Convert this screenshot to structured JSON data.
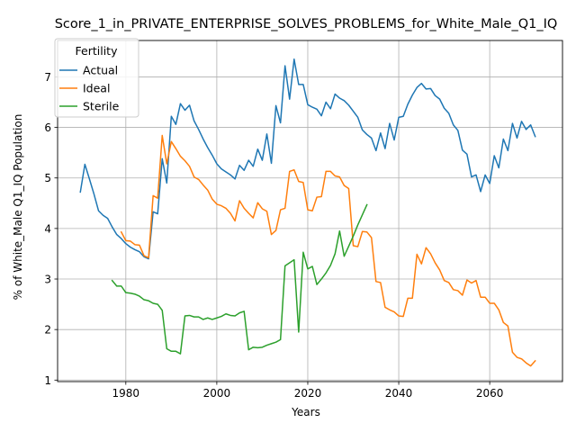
{
  "chart_data": {
    "type": "line",
    "title": "Score_1_in_PRIVATE_ENTERPRISE_SOLVES_PROBLEMS_for_White_Male_Q1_IQ",
    "xlabel": "Years",
    "ylabel": "% of White_Male Q1_IQ Population",
    "xlim": [
      1965,
      2076
    ],
    "ylim": [
      0.97,
      7.72
    ],
    "x_ticks": [
      "1980",
      "2000",
      "2020",
      "2040",
      "2060"
    ],
    "y_ticks": [
      "1",
      "2",
      "3",
      "4",
      "5",
      "6",
      "7"
    ],
    "grid": true,
    "legend": {
      "title": "Fertility",
      "placement": "top-left"
    },
    "series": [
      {
        "name": "Actual",
        "color": "#1f77b4",
        "x": [
          1970,
          1971,
          1972,
          1973,
          1974,
          1975,
          1976,
          1977,
          1978,
          1979,
          1980,
          1981,
          1982,
          1983,
          1984,
          1985,
          1986,
          1987,
          1988,
          1989,
          1990,
          1991,
          1992,
          1993,
          1994,
          1995,
          1996,
          1997,
          1998,
          1999,
          2000,
          2001,
          2002,
          2003,
          2004,
          2005,
          2006,
          2007,
          2008,
          2009,
          2010,
          2011,
          2012,
          2013,
          2014,
          2015,
          2016,
          2017,
          2018,
          2019,
          2020,
          2021,
          2022,
          2023,
          2024,
          2025,
          2026,
          2027,
          2028,
          2029,
          2030,
          2031,
          2032,
          2033,
          2034,
          2035,
          2036,
          2037,
          2038,
          2039,
          2040,
          2041,
          2042,
          2043,
          2044,
          2045,
          2046,
          2047,
          2048,
          2049,
          2050,
          2051,
          2052,
          2053,
          2054,
          2055,
          2056,
          2057,
          2058,
          2059,
          2060,
          2061,
          2062,
          2063,
          2064,
          2065,
          2066,
          2067,
          2068,
          2069,
          2070
        ],
        "values": [
          4.72,
          5.27,
          4.98,
          4.68,
          4.35,
          4.26,
          4.2,
          4.03,
          3.88,
          3.8,
          3.7,
          3.63,
          3.58,
          3.54,
          3.44,
          3.4,
          4.33,
          4.29,
          5.38,
          4.9,
          6.22,
          6.06,
          6.47,
          6.34,
          6.44,
          6.13,
          5.96,
          5.77,
          5.6,
          5.45,
          5.28,
          5.18,
          5.12,
          5.06,
          4.98,
          5.25,
          5.15,
          5.35,
          5.23,
          5.57,
          5.35,
          5.87,
          5.29,
          6.43,
          6.09,
          7.22,
          6.56,
          7.35,
          6.85,
          6.85,
          6.45,
          6.4,
          6.36,
          6.23,
          6.5,
          6.37,
          6.66,
          6.58,
          6.53,
          6.44,
          6.32,
          6.2,
          5.95,
          5.86,
          5.79,
          5.54,
          5.89,
          5.58,
          6.08,
          5.75,
          6.2,
          6.22,
          6.46,
          6.64,
          6.79,
          6.87,
          6.76,
          6.77,
          6.63,
          6.56,
          6.38,
          6.28,
          6.05,
          5.94,
          5.55,
          5.47,
          5.02,
          5.06,
          4.73,
          5.06,
          4.89,
          5.44,
          5.2,
          5.77,
          5.54,
          6.08,
          5.79,
          6.12,
          5.96,
          6.05,
          5.82
        ]
      },
      {
        "name": "Ideal",
        "color": "#ff7f0e",
        "x": [
          1979,
          1980,
          1981,
          1982,
          1983,
          1984,
          1985,
          1986,
          1987,
          1988,
          1989,
          1990,
          1991,
          1992,
          1993,
          1994,
          1995,
          1996,
          1997,
          1998,
          1999,
          2000,
          2001,
          2002,
          2003,
          2004,
          2005,
          2006,
          2007,
          2008,
          2009,
          2010,
          2011,
          2012,
          2013,
          2014,
          2015,
          2016,
          2017,
          2018,
          2019,
          2020,
          2021,
          2022,
          2023,
          2024,
          2025,
          2026,
          2027,
          2028,
          2029,
          2030,
          2031,
          2032,
          2033,
          2034,
          2035,
          2036,
          2037,
          2038,
          2039,
          2040,
          2041,
          2042,
          2043,
          2044,
          2045,
          2046,
          2047,
          2048,
          2049,
          2050,
          2051,
          2052,
          2053,
          2054,
          2055,
          2056,
          2057,
          2058,
          2059,
          2060,
          2061,
          2062,
          2063,
          2064,
          2065,
          2066,
          2067,
          2068,
          2069,
          2070
        ],
        "values": [
          3.93,
          3.76,
          3.75,
          3.68,
          3.67,
          3.46,
          3.42,
          4.65,
          4.6,
          5.84,
          5.28,
          5.72,
          5.58,
          5.43,
          5.34,
          5.23,
          5.02,
          4.97,
          4.86,
          4.76,
          4.58,
          4.48,
          4.45,
          4.4,
          4.3,
          4.15,
          4.55,
          4.4,
          4.3,
          4.21,
          4.51,
          4.39,
          4.34,
          3.88,
          3.96,
          4.37,
          4.4,
          5.13,
          5.16,
          4.93,
          4.91,
          4.37,
          4.35,
          4.62,
          4.63,
          5.13,
          5.13,
          5.04,
          5.02,
          4.85,
          4.79,
          3.66,
          3.64,
          3.94,
          3.93,
          3.82,
          2.95,
          2.93,
          2.44,
          2.39,
          2.35,
          2.27,
          2.26,
          2.62,
          2.62,
          3.49,
          3.3,
          3.62,
          3.5,
          3.32,
          3.18,
          2.97,
          2.93,
          2.79,
          2.77,
          2.68,
          2.98,
          2.92,
          2.97,
          2.64,
          2.64,
          2.52,
          2.52,
          2.39,
          2.14,
          2.07,
          1.55,
          1.45,
          1.42,
          1.34,
          1.28,
          1.38
        ]
      },
      {
        "name": "Sterile",
        "color": "#2ca02c",
        "x": [
          1977,
          1978,
          1979,
          1980,
          1981,
          1982,
          1983,
          1984,
          1985,
          1986,
          1987,
          1988,
          1989,
          1990,
          1991,
          1992,
          1993,
          1994,
          1995,
          1996,
          1997,
          1998,
          1999,
          2000,
          2001,
          2002,
          2003,
          2004,
          2005,
          2006,
          2007,
          2008,
          2009,
          2010,
          2011,
          2012,
          2013,
          2014,
          2015,
          2016,
          2017,
          2018,
          2019,
          2020,
          2021,
          2022,
          2023,
          2024,
          2025,
          2026,
          2027,
          2028,
          2029,
          2030,
          2031,
          2032,
          2033
        ],
        "values": [
          2.97,
          2.86,
          2.86,
          2.73,
          2.72,
          2.7,
          2.66,
          2.59,
          2.57,
          2.52,
          2.5,
          2.38,
          1.62,
          1.57,
          1.57,
          1.52,
          2.27,
          2.28,
          2.25,
          2.25,
          2.2,
          2.23,
          2.2,
          2.23,
          2.26,
          2.31,
          2.28,
          2.27,
          2.33,
          2.36,
          1.6,
          1.65,
          1.64,
          1.65,
          1.69,
          1.72,
          1.75,
          1.8,
          3.26,
          3.32,
          3.38,
          1.95,
          3.53,
          3.2,
          3.25,
          2.89,
          3.0,
          3.12,
          3.27,
          3.5,
          3.95,
          3.45,
          3.65,
          3.85,
          4.07,
          4.27,
          4.47
        ]
      }
    ]
  }
}
